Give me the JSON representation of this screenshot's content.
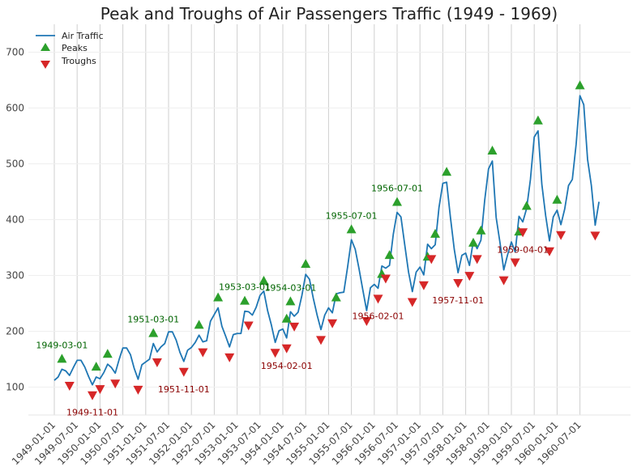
{
  "chart_data": {
    "type": "line",
    "title": "Peak and Troughs of Air Passengers Traffic (1949 - 1969)",
    "xlabel": "",
    "ylabel": "",
    "ylim": [
      50,
      750
    ],
    "y_ticks": [
      100,
      200,
      300,
      400,
      500,
      600,
      700
    ],
    "x_ticks": [
      "1949-01-01",
      "1949-07-01",
      "1950-01-01",
      "1950-07-01",
      "1951-01-01",
      "1951-07-01",
      "1952-01-01",
      "1952-07-01",
      "1953-01-01",
      "1953-07-01",
      "1954-01-01",
      "1954-07-01",
      "1955-01-01",
      "1955-07-01",
      "1956-01-01",
      "1956-07-01",
      "1957-01-01",
      "1957-07-01",
      "1958-01-01",
      "1958-07-01",
      "1959-01-01",
      "1959-07-01",
      "1960-01-01",
      "1960-07-01"
    ],
    "grid": "vertical",
    "legend": {
      "position": "top-left",
      "entries": [
        "Air Traffic",
        "Peaks",
        "Troughs"
      ]
    },
    "colors": {
      "line": "#1f77b4",
      "peaks": "#2ca02c",
      "troughs": "#d62728",
      "peak_label": "#006400",
      "trough_label": "#8b0000"
    },
    "series": [
      {
        "name": "Air Traffic",
        "x_start": "1949-01",
        "values": [
          112,
          118,
          132,
          129,
          121,
          135,
          148,
          148,
          136,
          119,
          104,
          118,
          115,
          126,
          141,
          135,
          125,
          149,
          170,
          170,
          158,
          133,
          114,
          140,
          145,
          150,
          178,
          163,
          172,
          178,
          199,
          199,
          184,
          162,
          146,
          166,
          171,
          180,
          193,
          181,
          183,
          218,
          230,
          242,
          209,
          191,
          172,
          194,
          196,
          196,
          236,
          235,
          229,
          243,
          264,
          272,
          237,
          211,
          180,
          201,
          204,
          188,
          235,
          227,
          234,
          264,
          302,
          293,
          259,
          229,
          203,
          229,
          242,
          233,
          267,
          269,
          270,
          315,
          364,
          347,
          312,
          274,
          237,
          278,
          284,
          277,
          317,
          313,
          318,
          374,
          413,
          405,
          355,
          306,
          271,
          306,
          315,
          301,
          356,
          348,
          355,
          422,
          465,
          467,
          404,
          347,
          305,
          336,
          340,
          318,
          362,
          348,
          363,
          435,
          491,
          505,
          404,
          359,
          310,
          337,
          360,
          342,
          406,
          396,
          420,
          472,
          548,
          559,
          463,
          407,
          362,
          405,
          417,
          391,
          419,
          461,
          472,
          535,
          622,
          606,
          508,
          461,
          390,
          432
        ]
      }
    ],
    "peaks": [
      {
        "x": "1949-03-01",
        "y": 132
      },
      {
        "x": "1949-12-01",
        "y": 118
      },
      {
        "x": "1950-03-01",
        "y": 141
      },
      {
        "x": "1951-03-01",
        "y": 178
      },
      {
        "x": "1952-03-01",
        "y": 193
      },
      {
        "x": "1952-08-01",
        "y": 242
      },
      {
        "x": "1953-03-01",
        "y": 236
      },
      {
        "x": "1953-08-01",
        "y": 272
      },
      {
        "x": "1954-02-01",
        "y": 204
      },
      {
        "x": "1954-03-01",
        "y": 235
      },
      {
        "x": "1954-07-01",
        "y": 302
      },
      {
        "x": "1955-03-01",
        "y": 242
      },
      {
        "x": "1955-07-01",
        "y": 364
      },
      {
        "x": "1956-03-01",
        "y": 284
      },
      {
        "x": "1956-05-01",
        "y": 318
      },
      {
        "x": "1956-07-01",
        "y": 413
      },
      {
        "x": "1957-03-01",
        "y": 315
      },
      {
        "x": "1957-05-01",
        "y": 356
      },
      {
        "x": "1957-08-01",
        "y": 467
      },
      {
        "x": "1958-03-01",
        "y": 340
      },
      {
        "x": "1958-05-01",
        "y": 362
      },
      {
        "x": "1958-08-01",
        "y": 505
      },
      {
        "x": "1959-03-01",
        "y": 360
      },
      {
        "x": "1959-05-01",
        "y": 406
      },
      {
        "x": "1959-08-01",
        "y": 559
      },
      {
        "x": "1960-01-01",
        "y": 417
      },
      {
        "x": "1960-07-01",
        "y": 622
      }
    ],
    "troughs": [
      {
        "x": "1949-05-01",
        "y": 121
      },
      {
        "x": "1949-11-01",
        "y": 104
      },
      {
        "x": "1950-01-01",
        "y": 115
      },
      {
        "x": "1950-05-01",
        "y": 125
      },
      {
        "x": "1950-11-01",
        "y": 114
      },
      {
        "x": "1951-04-01",
        "y": 163
      },
      {
        "x": "1951-11-01",
        "y": 146
      },
      {
        "x": "1952-04-01",
        "y": 181
      },
      {
        "x": "1952-11-01",
        "y": 172
      },
      {
        "x": "1953-04-01",
        "y": 229
      },
      {
        "x": "1953-11-01",
        "y": 180
      },
      {
        "x": "1954-02-01",
        "y": 188
      },
      {
        "x": "1954-04-01",
        "y": 227
      },
      {
        "x": "1954-11-01",
        "y": 203
      },
      {
        "x": "1955-02-01",
        "y": 233
      },
      {
        "x": "1955-11-01",
        "y": 237
      },
      {
        "x": "1956-02-01",
        "y": 277
      },
      {
        "x": "1956-04-01",
        "y": 313
      },
      {
        "x": "1956-11-01",
        "y": 271
      },
      {
        "x": "1957-02-01",
        "y": 301
      },
      {
        "x": "1957-04-01",
        "y": 348
      },
      {
        "x": "1957-11-01",
        "y": 305
      },
      {
        "x": "1958-02-01",
        "y": 318
      },
      {
        "x": "1958-04-01",
        "y": 348
      },
      {
        "x": "1958-11-01",
        "y": 310
      },
      {
        "x": "1959-02-01",
        "y": 342
      },
      {
        "x": "1959-04-01",
        "y": 396
      },
      {
        "x": "1959-11-01",
        "y": 362
      },
      {
        "x": "1960-02-01",
        "y": 391
      },
      {
        "x": "1960-11-01",
        "y": 390
      }
    ],
    "peak_labels": [
      {
        "text": "1949-03-01",
        "x": "1949-03-01",
        "y": 132
      },
      {
        "text": "1951-03-01",
        "x": "1951-03-01",
        "y": 178
      },
      {
        "text": "1953-03-01",
        "x": "1953-03-01",
        "y": 236
      },
      {
        "text": "1954-03-01",
        "x": "1954-03-01",
        "y": 235
      },
      {
        "text": "1955-07-01",
        "x": "1955-07-01",
        "y": 364
      },
      {
        "text": "1956-07-01",
        "x": "1956-07-01",
        "y": 413
      }
    ],
    "trough_labels": [
      {
        "text": "1949-11-01",
        "x": "1949-11-01",
        "y": 104
      },
      {
        "text": "1951-11-01",
        "x": "1951-11-01",
        "y": 146
      },
      {
        "text": "1954-02-01",
        "x": "1954-02-01",
        "y": 188
      },
      {
        "text": "1956-02-01",
        "x": "1956-02-01",
        "y": 277
      },
      {
        "text": "1957-11-01",
        "x": "1957-11-01",
        "y": 305
      },
      {
        "text": "1959-04-01",
        "x": "1959-04-01",
        "y": 396
      }
    ]
  }
}
